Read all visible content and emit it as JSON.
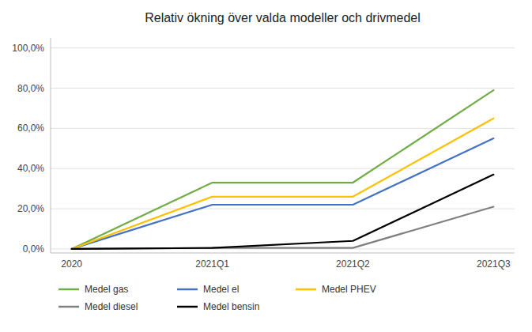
{
  "chart_data": {
    "type": "line",
    "title": "Relativ ökning över valda modeller och drivmedel",
    "categories": [
      "2020",
      "2021Q1",
      "2021Q2",
      "2021Q3"
    ],
    "series": [
      {
        "name": "Medel gas",
        "color": "#70ad47",
        "values": [
          0.0,
          0.33,
          0.33,
          0.79
        ]
      },
      {
        "name": "Medel el",
        "color": "#4472c4",
        "values": [
          0.0,
          0.22,
          0.22,
          0.55
        ]
      },
      {
        "name": "Medel PHEV",
        "color": "#ffc000",
        "values": [
          0.0,
          0.26,
          0.26,
          0.65
        ]
      },
      {
        "name": "Medel diesel",
        "color": "#808080",
        "values": [
          0.0,
          0.005,
          0.005,
          0.21
        ]
      },
      {
        "name": "Medel bensin",
        "color": "#000000",
        "values": [
          0.0,
          0.005,
          0.04,
          0.37
        ]
      }
    ],
    "ylim": [
      -0.02,
      1.05
    ],
    "yticks": [
      {
        "value": 0.0,
        "label": "0,0%"
      },
      {
        "value": 0.2,
        "label": "20,0%"
      },
      {
        "value": 0.4,
        "label": "40,0%"
      },
      {
        "value": 0.6,
        "label": "60,0%"
      },
      {
        "value": 0.8,
        "label": "80,0%"
      },
      {
        "value": 1.0,
        "label": "100,0%"
      }
    ],
    "grid": true,
    "legend": "bottom"
  }
}
